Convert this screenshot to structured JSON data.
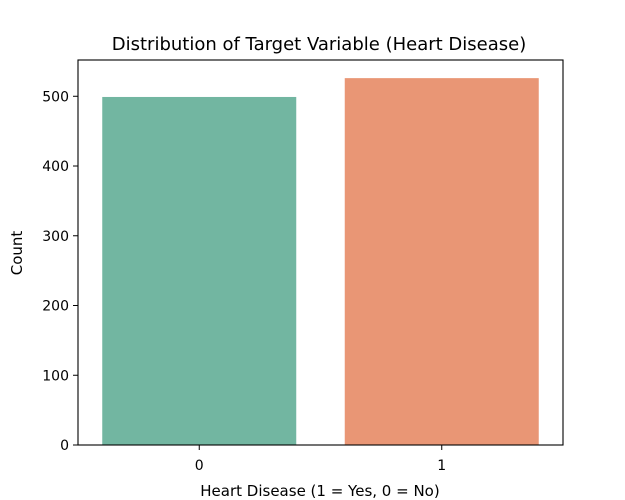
{
  "chart_data": {
    "type": "bar",
    "title": "Distribution of Target Variable (Heart Disease)",
    "xlabel": "Heart Disease (1 = Yes, 0 = No)",
    "ylabel": "Count",
    "categories": [
      "0",
      "1"
    ],
    "values": [
      499,
      526
    ],
    "colors": [
      "#72b6a1",
      "#e99675"
    ],
    "ylim": [
      0,
      552
    ],
    "yticks": [
      0,
      100,
      200,
      300,
      400,
      500
    ],
    "grid": false,
    "legend": "none"
  }
}
